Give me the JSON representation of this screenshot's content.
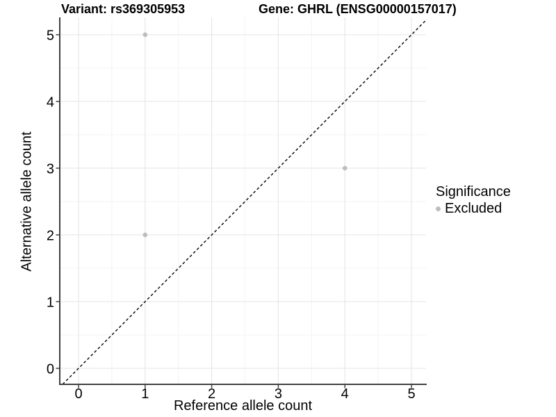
{
  "chart_data": {
    "type": "scatter",
    "title_parts": [
      "Variant: rs369305953",
      "Gene: GHRL (ENSG00000157017)"
    ],
    "xlabel": "Reference allele count",
    "ylabel": "Alternative allele count",
    "xlim": [
      -0.282,
      5.219
    ],
    "ylim": [
      -0.24,
      5.26
    ],
    "xticks": [
      0,
      1,
      2,
      3,
      4,
      5
    ],
    "yticks": [
      0,
      1,
      2,
      3,
      4,
      5
    ],
    "minor_xticks": [
      0.5,
      1.5,
      2.5,
      3.5,
      4.5
    ],
    "minor_yticks": [
      0.5,
      1.5,
      2.5,
      3.5,
      4.5
    ],
    "grid": "major+minor",
    "series": [
      {
        "name": "Excluded",
        "marker": "circle",
        "color": "#bdbdbd",
        "points": [
          {
            "x": 1,
            "y": 5
          },
          {
            "x": 4,
            "y": 3
          },
          {
            "x": 1,
            "y": 2
          }
        ]
      }
    ],
    "reference_line": {
      "kind": "abline",
      "slope": 1,
      "intercept": 0,
      "style": "dashed",
      "color": "#000000"
    },
    "legend": {
      "title": "Significance",
      "position": "right",
      "items": [
        {
          "label": "Excluded",
          "color": "#bdbdbd",
          "marker": "circle"
        }
      ]
    },
    "colors": {
      "background": "#ffffff",
      "major_grid": "#e7e7e7",
      "minor_grid": "#f3f3f3",
      "axis_line": "#404040",
      "tick_mark": "#404040",
      "tick_label": "#000000",
      "point": "#bdbdbd",
      "dashed_line": "#000000"
    }
  }
}
